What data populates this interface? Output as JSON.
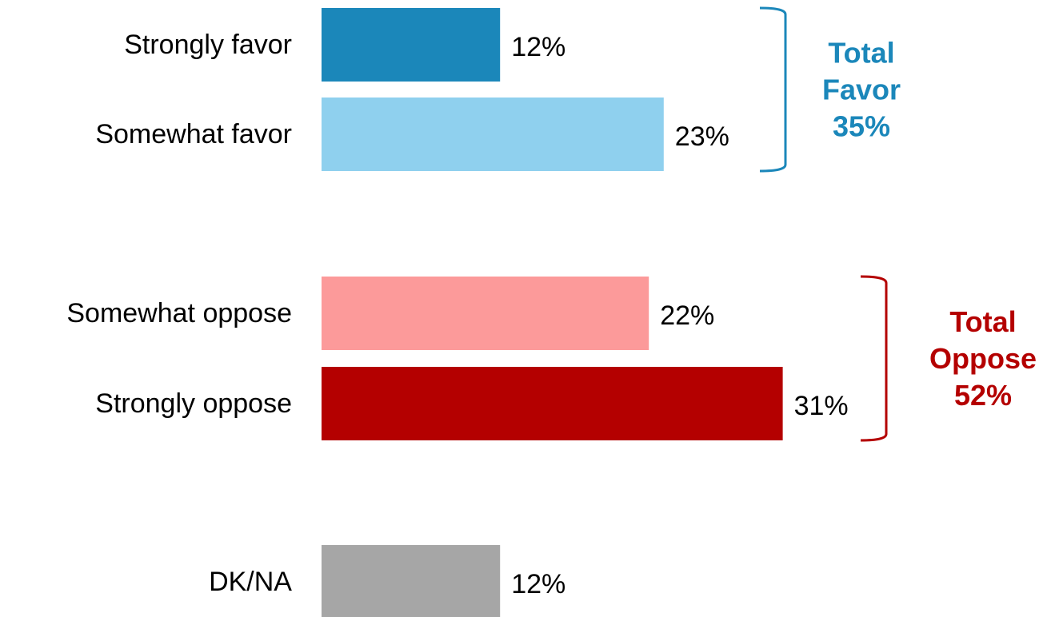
{
  "chart_data": {
    "type": "bar",
    "orientation": "horizontal",
    "categories": [
      "Strongly favor",
      "Somewhat favor",
      "Somewhat oppose",
      "Strongly oppose",
      "DK/NA"
    ],
    "values": [
      12,
      23,
      22,
      31,
      12
    ],
    "value_labels": [
      "12%",
      "23%",
      "22%",
      "31%",
      "12%"
    ],
    "colors": [
      "#1b87ba",
      "#8fd0ee",
      "#fc9a9a",
      "#b40000",
      "#a6a6a6"
    ],
    "xlim": [
      0,
      40
    ],
    "grid": false,
    "legend": "none",
    "groups": [
      {
        "members": [
          "Strongly favor",
          "Somewhat favor"
        ],
        "label_lines": [
          "Total",
          "Favor",
          "35%"
        ],
        "value": 35,
        "color": "#1b87ba"
      },
      {
        "members": [
          "Somewhat oppose",
          "Strongly oppose"
        ],
        "label_lines": [
          "Total",
          "Oppose",
          "52%"
        ],
        "value": 52,
        "color": "#b40000"
      }
    ]
  }
}
